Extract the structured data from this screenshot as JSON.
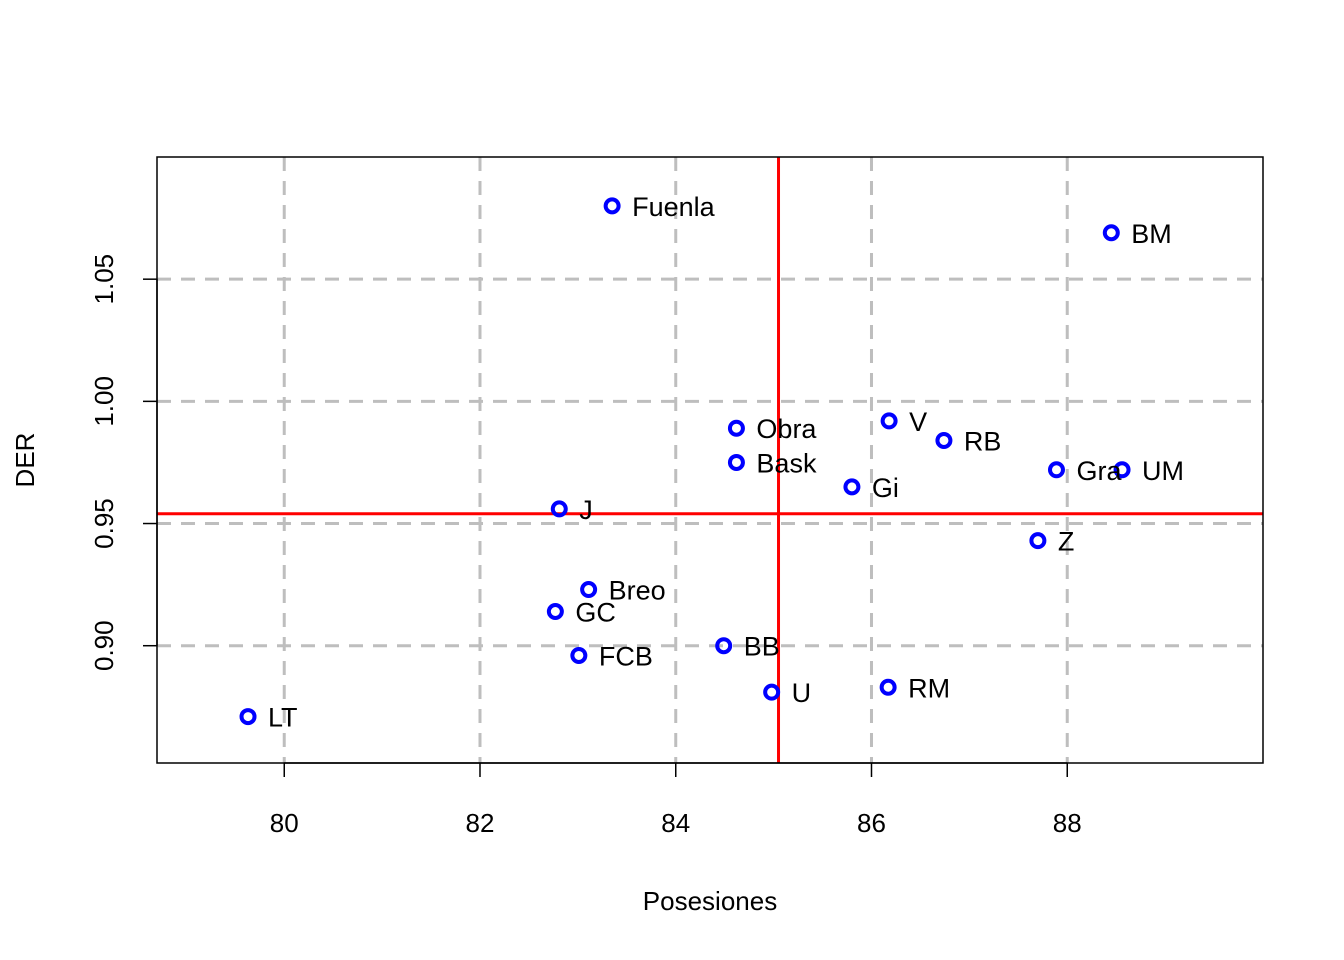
{
  "chart_data": {
    "type": "scatter",
    "title": "",
    "xlabel": "Posesiones",
    "ylabel": "DER",
    "xlim": [
      78.7,
      90.0
    ],
    "ylim": [
      0.852,
      1.1
    ],
    "xticks": [
      80,
      82,
      84,
      86,
      88
    ],
    "xtick_labels": [
      "80",
      "82",
      "84",
      "86",
      "88"
    ],
    "yticks": [
      0.9,
      0.95,
      1.0,
      1.05
    ],
    "ytick_labels": [
      "0.90",
      "0.95",
      "1.00",
      "1.05"
    ],
    "grid": true,
    "reference_lines": {
      "x": 85.05,
      "y": 0.954
    },
    "colors": {
      "points": "#0000ff",
      "reference": "#ff0000",
      "grid": "#bebebe"
    },
    "points": [
      {
        "label": "Fuenla",
        "x": 83.35,
        "y": 1.08
      },
      {
        "label": "BM",
        "x": 88.45,
        "y": 1.069
      },
      {
        "label": "Obra",
        "x": 84.62,
        "y": 0.989
      },
      {
        "label": "V",
        "x": 86.18,
        "y": 0.992
      },
      {
        "label": "RB",
        "x": 86.74,
        "y": 0.984
      },
      {
        "label": "Bask",
        "x": 84.62,
        "y": 0.975
      },
      {
        "label": "Gra",
        "x": 87.89,
        "y": 0.972
      },
      {
        "label": "UM",
        "x": 88.56,
        "y": 0.972
      },
      {
        "label": "Gi",
        "x": 85.8,
        "y": 0.965
      },
      {
        "label": "J",
        "x": 82.81,
        "y": 0.956
      },
      {
        "label": "Z",
        "x": 87.7,
        "y": 0.943
      },
      {
        "label": "Breo",
        "x": 83.11,
        "y": 0.923
      },
      {
        "label": "GC",
        "x": 82.77,
        "y": 0.914
      },
      {
        "label": "BB",
        "x": 84.49,
        "y": 0.9
      },
      {
        "label": "FCB",
        "x": 83.01,
        "y": 0.896
      },
      {
        "label": "U",
        "x": 84.98,
        "y": 0.881
      },
      {
        "label": "RM",
        "x": 86.17,
        "y": 0.883
      },
      {
        "label": "LT",
        "x": 79.63,
        "y": 0.871
      }
    ]
  }
}
